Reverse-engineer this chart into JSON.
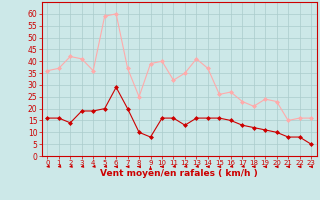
{
  "hours": [
    0,
    1,
    2,
    3,
    4,
    5,
    6,
    7,
    8,
    9,
    10,
    11,
    12,
    13,
    14,
    15,
    16,
    17,
    18,
    19,
    20,
    21,
    22,
    23
  ],
  "wind_avg": [
    16,
    16,
    14,
    19,
    19,
    20,
    29,
    20,
    10,
    8,
    16,
    16,
    13,
    16,
    16,
    16,
    15,
    13,
    12,
    11,
    10,
    8,
    8,
    5
  ],
  "wind_gust": [
    36,
    37,
    42,
    41,
    36,
    59,
    60,
    37,
    25,
    39,
    40,
    32,
    35,
    41,
    37,
    26,
    27,
    23,
    21,
    24,
    23,
    15,
    16,
    16
  ],
  "bg_color": "#cce8e8",
  "grid_color": "#aacccc",
  "avg_color": "#cc0000",
  "gust_color": "#ffaaaa",
  "xlabel": "Vent moyen/en rafales ( km/h )",
  "xlabel_color": "#cc0000",
  "tick_color": "#cc0000",
  "ylim": [
    0,
    65
  ],
  "yticks": [
    0,
    5,
    10,
    15,
    20,
    25,
    30,
    35,
    40,
    45,
    50,
    55,
    60
  ],
  "marker": "D",
  "markersize": 2,
  "linewidth": 0.8
}
